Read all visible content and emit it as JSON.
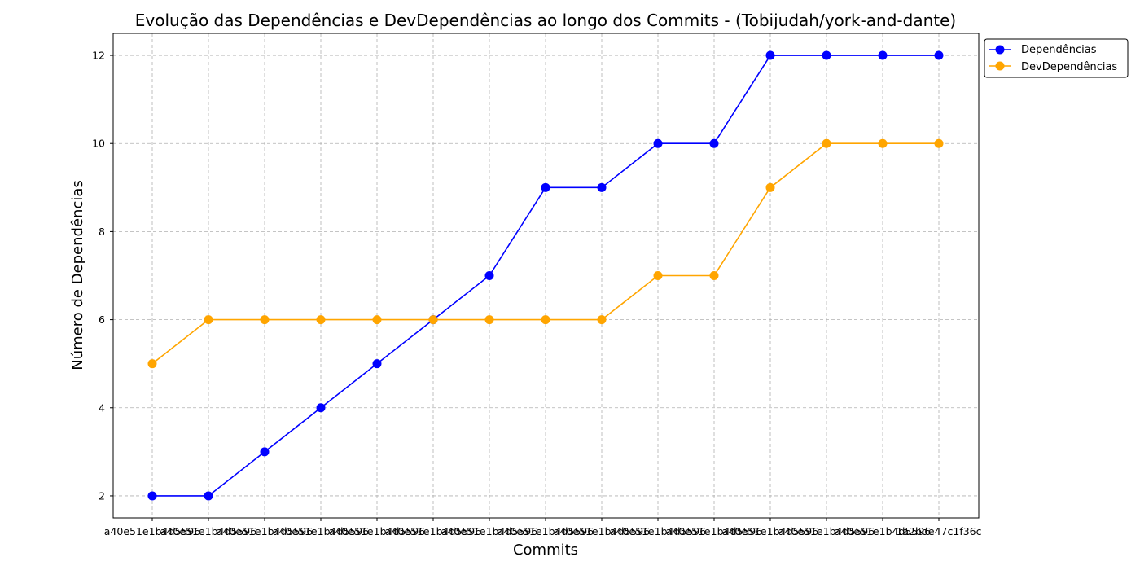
{
  "chart_data": {
    "type": "line",
    "title": "Evolução das Dependências e DevDependências ao longo dos Commits - (Tobijudah/york-and-dante)",
    "xlabel": "Commits",
    "ylabel": "Número de Dependências",
    "categories": [
      "a40e51e1b4d5596",
      "a40e51e1b4d5596",
      "a40e51e1b4d5596",
      "a40e51e1b4d5596",
      "a40e51e1b4d5596",
      "a40e51e1b4d5596",
      "a40e51e1b4d5596",
      "a40e51e1b4d5596",
      "a40e51e1b4d5596",
      "a40e51e1b4d5596",
      "a40e51e1b4d5596",
      "a40e51e1b4d5596",
      "a40e51e1b4d5596",
      "a40e51e1b4d5596",
      "a40e51e1b4d5596"
    ],
    "x_tick_labels_visible": [
      "a40e51e1b4d5596",
      "1a2bde47c1f36c"
    ],
    "y_ticks": [
      2,
      4,
      6,
      8,
      10,
      12
    ],
    "ylim": [
      1.5,
      12.5
    ],
    "grid": true,
    "legend_position": "outside-top-right",
    "series": [
      {
        "name": "Dependências",
        "color": "#0000ff",
        "values": [
          2,
          2,
          3,
          4,
          5,
          6,
          7,
          9,
          9,
          10,
          10,
          12,
          12,
          12,
          12
        ]
      },
      {
        "name": "DevDependências",
        "color": "#ffa500",
        "values": [
          5,
          6,
          6,
          6,
          6,
          6,
          6,
          6,
          6,
          7,
          7,
          9,
          10,
          10,
          10
        ]
      }
    ]
  }
}
